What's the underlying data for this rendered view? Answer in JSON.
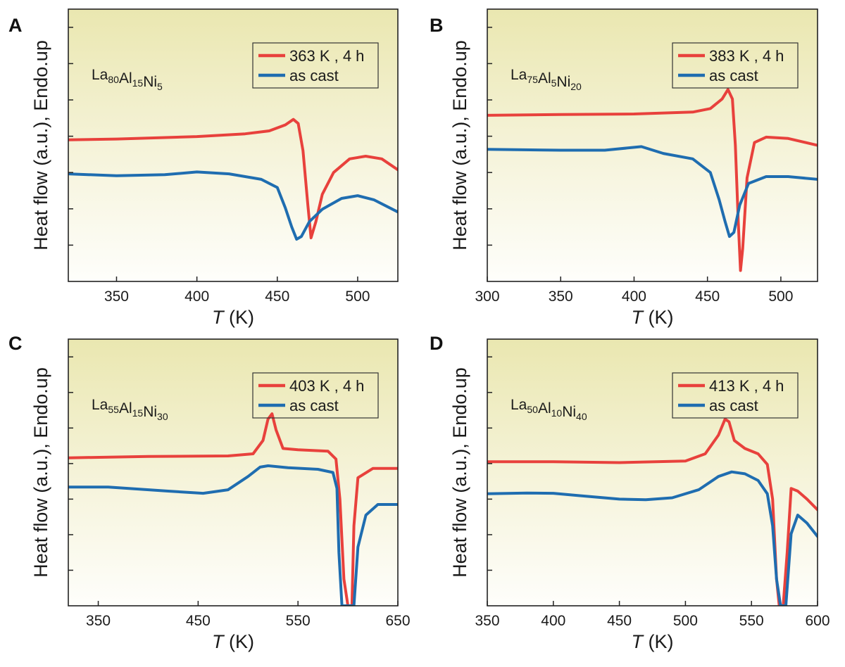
{
  "figure": {
    "description_text": ""
  },
  "chart_data": [
    {
      "panel": "A",
      "type": "line",
      "composition": [
        [
          "La",
          "80"
        ],
        [
          "Al",
          "15"
        ],
        [
          "Ni",
          "5"
        ]
      ],
      "xlabel_italic": "T",
      "xlabel_unit": " (K)",
      "ylabel": "Heat flow (a.u.), Endo.up",
      "xlim": [
        320,
        525
      ],
      "ylim": [
        0,
        100
      ],
      "xticks": [
        350,
        400,
        450,
        500
      ],
      "yticks_count": 7,
      "legend": {
        "placement": "top-right",
        "entries": [
          "363 K , 4 h",
          "as cast"
        ]
      },
      "series": [
        {
          "name": "363 K , 4 h",
          "color": "#e8413c",
          "x": [
            320,
            350,
            400,
            430,
            445,
            455,
            460,
            463,
            466,
            469,
            471,
            474,
            478,
            485,
            495,
            505,
            515,
            525
          ],
          "y": [
            52,
            52.3,
            53.2,
            54.2,
            55.3,
            57.5,
            59.5,
            58,
            48,
            28,
            16,
            22,
            32,
            40,
            45,
            46,
            45,
            41
          ]
        },
        {
          "name": "as cast",
          "color": "#1f6db0",
          "x": [
            320,
            350,
            380,
            400,
            420,
            440,
            450,
            455,
            459,
            462,
            465,
            470,
            478,
            490,
            500,
            510,
            525
          ],
          "y": [
            39.5,
            38.8,
            39.2,
            40.2,
            39.5,
            37.5,
            34.5,
            27,
            20,
            15.5,
            16.5,
            22,
            26.5,
            30.5,
            31.5,
            30,
            25.5
          ]
        }
      ]
    },
    {
      "panel": "B",
      "type": "line",
      "composition": [
        [
          "La",
          "75"
        ],
        [
          "Al",
          "5"
        ],
        [
          "Ni",
          "20"
        ]
      ],
      "xlabel_italic": "T",
      "xlabel_unit": " (K)",
      "ylabel": "Heat flow (a.u.), Endo.up",
      "xlim": [
        300,
        525
      ],
      "ylim": [
        0,
        100
      ],
      "xticks": [
        300,
        350,
        400,
        450,
        500
      ],
      "yticks_count": 7,
      "legend": {
        "placement": "top-right",
        "entries": [
          "383 K , 4 h",
          "as cast"
        ]
      },
      "series": [
        {
          "name": "383 K , 4 h",
          "color": "#e8413c",
          "x": [
            300,
            350,
            400,
            440,
            452,
            460,
            464,
            467,
            469,
            471,
            472.5,
            474,
            477,
            482,
            490,
            505,
            525
          ],
          "y": [
            61,
            61.3,
            61.5,
            62.2,
            63.5,
            67,
            70.5,
            67,
            50,
            22,
            4,
            12,
            38,
            51,
            53,
            52.5,
            50
          ]
        },
        {
          "name": "as cast",
          "color": "#1f6db0",
          "x": [
            300,
            350,
            380,
            405,
            420,
            440,
            452,
            458,
            462,
            465,
            468,
            472,
            478,
            490,
            505,
            525
          ],
          "y": [
            48.5,
            48.2,
            48.2,
            49.5,
            47,
            45,
            40,
            30,
            22,
            16.5,
            18,
            28,
            36,
            38.5,
            38.5,
            37.5
          ]
        }
      ]
    },
    {
      "panel": "C",
      "type": "line",
      "composition": [
        [
          "La",
          "55"
        ],
        [
          "Al",
          "15"
        ],
        [
          "Ni",
          "30"
        ]
      ],
      "xlabel_italic": "T",
      "xlabel_unit": " (K)",
      "ylabel": "Heat flow (a.u.), Endo.up",
      "xlim": [
        320,
        650
      ],
      "ylim": [
        0,
        100
      ],
      "xticks": [
        350,
        450,
        550,
        650
      ],
      "yticks_count": 7,
      "legend": {
        "placement": "top-right",
        "entries": [
          "403 K , 4 h",
          "as cast"
        ]
      },
      "series": [
        {
          "name": "403 K , 4 h",
          "color": "#e8413c",
          "x": [
            320,
            400,
            480,
            505,
            515,
            520,
            524,
            528,
            535,
            550,
            580,
            588,
            592,
            596,
            600,
            604,
            606,
            610,
            625,
            650
          ],
          "y": [
            55.5,
            56,
            56.2,
            57,
            62,
            70,
            72,
            66,
            59,
            58.5,
            58,
            55,
            40,
            10,
            0,
            0,
            30,
            48,
            51.5,
            51.5
          ]
        },
        {
          "name": "as cast",
          "color": "#1f6db0",
          "x": [
            320,
            360,
            420,
            455,
            480,
            500,
            512,
            520,
            540,
            570,
            585,
            589,
            591,
            594,
            600,
            606,
            610,
            618,
            630,
            650
          ],
          "y": [
            44.5,
            44.5,
            43,
            42.2,
            43.5,
            48.5,
            52,
            52.5,
            51.8,
            51.2,
            50,
            44,
            20,
            0,
            0,
            0,
            22,
            34,
            38,
            38
          ]
        }
      ]
    },
    {
      "panel": "D",
      "type": "line",
      "composition": [
        [
          "La",
          "50"
        ],
        [
          "Al",
          "10"
        ],
        [
          "Ni",
          "40"
        ]
      ],
      "xlabel_italic": "T",
      "xlabel_unit": " (K)",
      "ylabel": "Heat flow (a.u.), Endo.up",
      "xlim": [
        350,
        600
      ],
      "ylim": [
        0,
        100
      ],
      "xticks": [
        350,
        400,
        450,
        500,
        550,
        600
      ],
      "yticks_count": 7,
      "legend": {
        "placement": "top-right",
        "entries": [
          "413 K , 4 h",
          "as cast"
        ]
      },
      "series": [
        {
          "name": "413 K , 4 h",
          "color": "#e8413c",
          "x": [
            350,
            400,
            450,
            500,
            515,
            525,
            530,
            533,
            537,
            545,
            555,
            562,
            566,
            569,
            571,
            574,
            577,
            580,
            585,
            592,
            600
          ],
          "y": [
            54,
            54,
            53.7,
            54.3,
            57,
            64,
            70,
            69,
            62,
            59,
            57,
            53,
            40,
            10,
            0,
            0,
            20,
            44,
            43,
            40,
            36
          ]
        },
        {
          "name": "as cast",
          "color": "#1f6db0",
          "x": [
            350,
            380,
            400,
            420,
            450,
            470,
            490,
            510,
            525,
            535,
            545,
            555,
            562,
            566,
            569,
            572,
            576,
            580,
            585,
            592,
            600
          ],
          "y": [
            42,
            42.3,
            42.2,
            41.3,
            40,
            39.8,
            40.5,
            43.5,
            48.5,
            50.2,
            49.5,
            47,
            42,
            30,
            10,
            0,
            0,
            27,
            34,
            31,
            26
          ]
        }
      ]
    }
  ]
}
